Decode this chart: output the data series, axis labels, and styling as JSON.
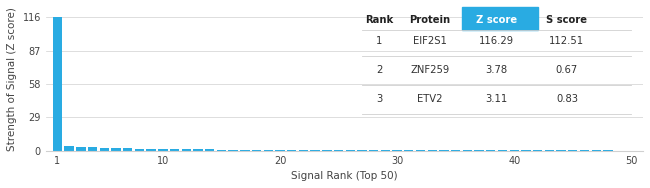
{
  "ranks": [
    1,
    2,
    3,
    4,
    5,
    6,
    7,
    8,
    9,
    10,
    11,
    12,
    13,
    14,
    15,
    16,
    17,
    18,
    19,
    20,
    21,
    22,
    23,
    24,
    25,
    26,
    27,
    28,
    29,
    30,
    31,
    32,
    33,
    34,
    35,
    36,
    37,
    38,
    39,
    40,
    41,
    42,
    43,
    44,
    45,
    46,
    47,
    48,
    49,
    50
  ],
  "z_scores": [
    116.29,
    3.78,
    3.11,
    2.8,
    2.5,
    2.2,
    2.0,
    1.8,
    1.6,
    1.4,
    1.3,
    1.2,
    1.1,
    1.0,
    0.95,
    0.9,
    0.85,
    0.8,
    0.75,
    0.7,
    0.65,
    0.6,
    0.58,
    0.55,
    0.52,
    0.5,
    0.48,
    0.46,
    0.44,
    0.42,
    0.4,
    0.38,
    0.36,
    0.34,
    0.32,
    0.3,
    0.28,
    0.26,
    0.24,
    0.22,
    0.2,
    0.19,
    0.18,
    0.17,
    0.16,
    0.15,
    0.14,
    0.13,
    0.12,
    0.11
  ],
  "bar_color": "#29ABE2",
  "background_color": "#ffffff",
  "grid_color": "#d0d0d0",
  "xlabel": "Signal Rank (Top 50)",
  "ylabel": "Strength of Signal (Z score)",
  "yticks": [
    0,
    29,
    58,
    87,
    116
  ],
  "xticks": [
    1,
    10,
    20,
    30,
    40,
    50
  ],
  "xlim": [
    0,
    51
  ],
  "ylim": [
    0,
    125
  ],
  "table_header": [
    "Rank",
    "Protein",
    "Z score",
    "S score"
  ],
  "table_rows": [
    [
      "1",
      "EIF2S1",
      "116.29",
      "112.51"
    ],
    [
      "2",
      "ZNF259",
      "3.78",
      "0.67"
    ],
    [
      "3",
      "ETV2",
      "3.11",
      "0.83"
    ]
  ],
  "zscore_header_bg": "#29ABE2",
  "zscore_header_color": "#ffffff",
  "font_size": 7.5,
  "tick_font_size": 7.0,
  "table_font_size": 7.2
}
